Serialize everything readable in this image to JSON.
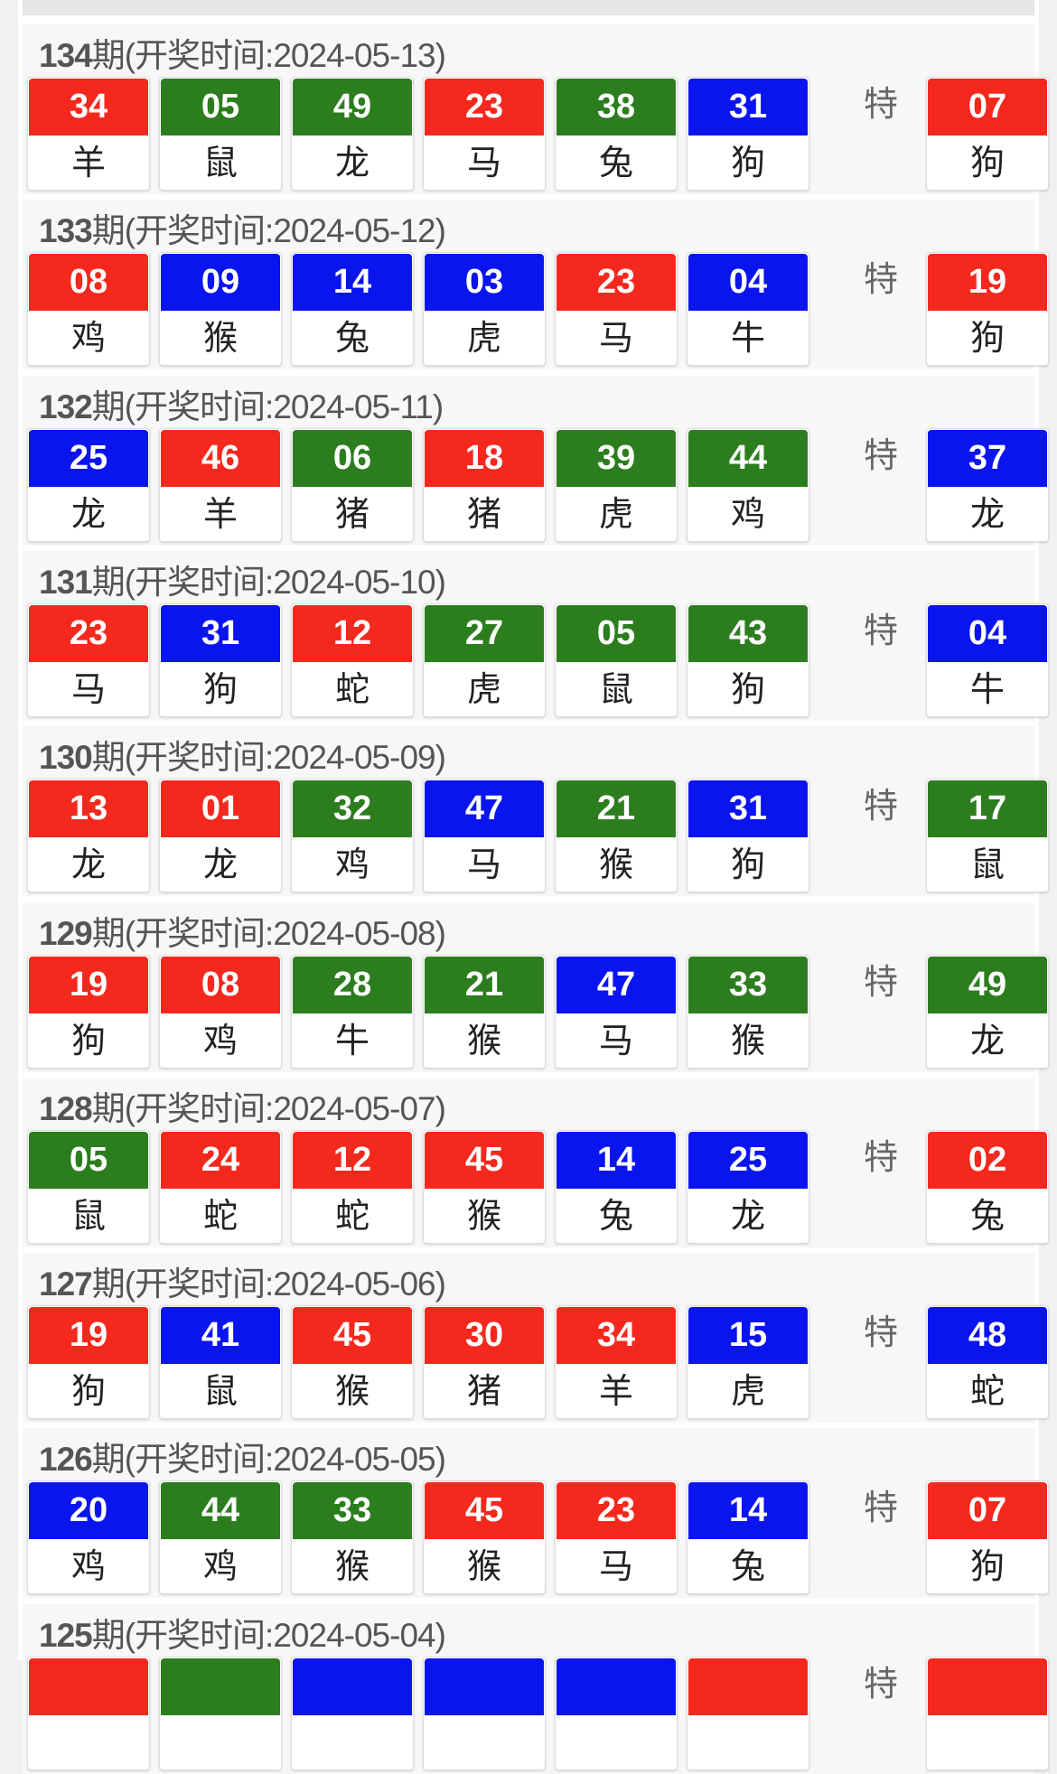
{
  "colors": {
    "red": "#f5281d",
    "green": "#2c7d1e",
    "blue": "#0a14ef"
  },
  "special_label": "特",
  "draws": [
    {
      "period": "134",
      "suffix": "期(开奖时间:2024-05-13)",
      "balls": [
        [
          "34",
          "羊",
          "red"
        ],
        [
          "05",
          "鼠",
          "green"
        ],
        [
          "49",
          "龙",
          "green"
        ],
        [
          "23",
          "马",
          "red"
        ],
        [
          "38",
          "兔",
          "green"
        ],
        [
          "31",
          "狗",
          "blue"
        ]
      ],
      "special": [
        "07",
        "狗",
        "red"
      ]
    },
    {
      "period": "133",
      "suffix": "期(开奖时间:2024-05-12)",
      "balls": [
        [
          "08",
          "鸡",
          "red"
        ],
        [
          "09",
          "猴",
          "blue"
        ],
        [
          "14",
          "兔",
          "blue"
        ],
        [
          "03",
          "虎",
          "blue"
        ],
        [
          "23",
          "马",
          "red"
        ],
        [
          "04",
          "牛",
          "blue"
        ]
      ],
      "special": [
        "19",
        "狗",
        "red"
      ]
    },
    {
      "period": "132",
      "suffix": "期(开奖时间:2024-05-11)",
      "balls": [
        [
          "25",
          "龙",
          "blue"
        ],
        [
          "46",
          "羊",
          "red"
        ],
        [
          "06",
          "猪",
          "green"
        ],
        [
          "18",
          "猪",
          "red"
        ],
        [
          "39",
          "虎",
          "green"
        ],
        [
          "44",
          "鸡",
          "green"
        ]
      ],
      "special": [
        "37",
        "龙",
        "blue"
      ]
    },
    {
      "period": "131",
      "suffix": "期(开奖时间:2024-05-10)",
      "balls": [
        [
          "23",
          "马",
          "red"
        ],
        [
          "31",
          "狗",
          "blue"
        ],
        [
          "12",
          "蛇",
          "red"
        ],
        [
          "27",
          "虎",
          "green"
        ],
        [
          "05",
          "鼠",
          "green"
        ],
        [
          "43",
          "狗",
          "green"
        ]
      ],
      "special": [
        "04",
        "牛",
        "blue"
      ]
    },
    {
      "period": "130",
      "suffix": "期(开奖时间:2024-05-09)",
      "balls": [
        [
          "13",
          "龙",
          "red"
        ],
        [
          "01",
          "龙",
          "red"
        ],
        [
          "32",
          "鸡",
          "green"
        ],
        [
          "47",
          "马",
          "blue"
        ],
        [
          "21",
          "猴",
          "green"
        ],
        [
          "31",
          "狗",
          "blue"
        ]
      ],
      "special": [
        "17",
        "鼠",
        "green"
      ]
    },
    {
      "period": "129",
      "suffix": "期(开奖时间:2024-05-08)",
      "balls": [
        [
          "19",
          "狗",
          "red"
        ],
        [
          "08",
          "鸡",
          "red"
        ],
        [
          "28",
          "牛",
          "green"
        ],
        [
          "21",
          "猴",
          "green"
        ],
        [
          "47",
          "马",
          "blue"
        ],
        [
          "33",
          "猴",
          "green"
        ]
      ],
      "special": [
        "49",
        "龙",
        "green"
      ]
    },
    {
      "period": "128",
      "suffix": "期(开奖时间:2024-05-07)",
      "balls": [
        [
          "05",
          "鼠",
          "green"
        ],
        [
          "24",
          "蛇",
          "red"
        ],
        [
          "12",
          "蛇",
          "red"
        ],
        [
          "45",
          "猴",
          "red"
        ],
        [
          "14",
          "兔",
          "blue"
        ],
        [
          "25",
          "龙",
          "blue"
        ]
      ],
      "special": [
        "02",
        "兔",
        "red"
      ]
    },
    {
      "period": "127",
      "suffix": "期(开奖时间:2024-05-06)",
      "balls": [
        [
          "19",
          "狗",
          "red"
        ],
        [
          "41",
          "鼠",
          "blue"
        ],
        [
          "45",
          "猴",
          "red"
        ],
        [
          "30",
          "猪",
          "red"
        ],
        [
          "34",
          "羊",
          "red"
        ],
        [
          "15",
          "虎",
          "blue"
        ]
      ],
      "special": [
        "48",
        "蛇",
        "blue"
      ]
    },
    {
      "period": "126",
      "suffix": "期(开奖时间:2024-05-05)",
      "balls": [
        [
          "20",
          "鸡",
          "blue"
        ],
        [
          "44",
          "鸡",
          "green"
        ],
        [
          "33",
          "猴",
          "green"
        ],
        [
          "45",
          "猴",
          "red"
        ],
        [
          "23",
          "马",
          "red"
        ],
        [
          "14",
          "兔",
          "blue"
        ]
      ],
      "special": [
        "07",
        "狗",
        "red"
      ]
    },
    {
      "period": "125",
      "suffix": "期(开奖时间:2024-05-04)",
      "balls": [
        [
          "",
          "",
          "red"
        ],
        [
          "",
          "",
          "green"
        ],
        [
          "",
          "",
          "blue"
        ],
        [
          "",
          "",
          "blue"
        ],
        [
          "",
          "",
          "blue"
        ],
        [
          "",
          "",
          "red"
        ]
      ],
      "special": [
        "",
        "",
        "red"
      ]
    }
  ]
}
